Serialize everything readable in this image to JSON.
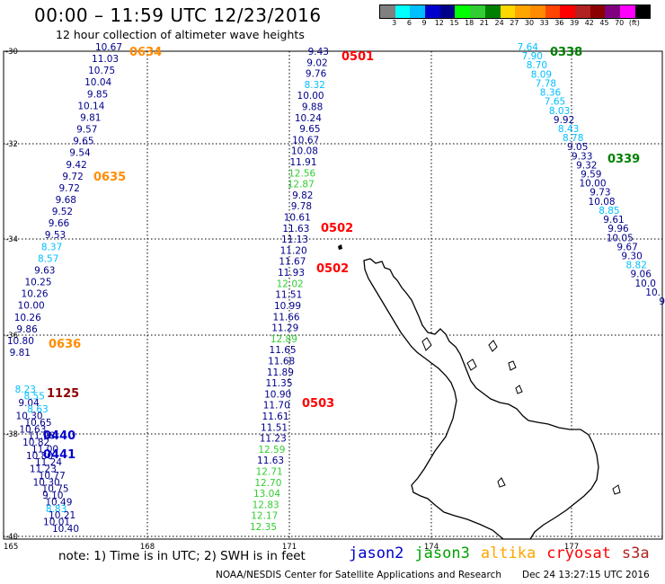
{
  "header": {
    "title": "00:00 – 11:59 UTC 12/23/2016",
    "subtitle": "12 hour collection of altimeter wave heights"
  },
  "colorbar": {
    "colors": [
      "#808080",
      "#00ffff",
      "#00bfff",
      "#0000cd",
      "#00008b",
      "#00ff00",
      "#32cd32",
      "#008000",
      "#ffd700",
      "#ffa500",
      "#ff8c00",
      "#ff4500",
      "#ff0000",
      "#b22222",
      "#8b0000",
      "#800080",
      "#ff00ff",
      "#000000"
    ],
    "labels": [
      "3",
      "6",
      "9",
      "12",
      "15",
      "18",
      "21",
      "24",
      "27",
      "30",
      "33",
      "36",
      "39",
      "42",
      "45",
      "70",
      "(ft)"
    ]
  },
  "axes": {
    "x_ticks": [
      "165",
      "168",
      "171",
      "174",
      "177"
    ],
    "y_ticks": [
      "-30",
      "-32",
      "-34",
      "-36",
      "-38",
      "-40"
    ]
  },
  "tracks": [
    {
      "points": [
        [
          "10.67",
          "#00008b"
        ],
        [
          "11.03",
          "#00008b"
        ],
        [
          "10.75",
          "#00008b"
        ],
        [
          "10.04",
          "#00008b"
        ],
        [
          "9.85",
          "#00008b"
        ],
        [
          "10.14",
          "#00008b"
        ],
        [
          "9.81",
          "#00008b"
        ],
        [
          "9.57",
          "#00008b"
        ],
        [
          "9.65",
          "#00008b"
        ],
        [
          "9.54",
          "#00008b"
        ],
        [
          "9.42",
          "#00008b"
        ],
        [
          "9.72",
          "#00008b"
        ],
        [
          "9.72",
          "#00008b"
        ],
        [
          "9.68",
          "#00008b"
        ],
        [
          "9.52",
          "#00008b"
        ],
        [
          "9.66",
          "#00008b"
        ],
        [
          "9.53",
          "#00008b"
        ],
        [
          "8.37",
          "#00bfff"
        ],
        [
          "8.57",
          "#00bfff"
        ],
        [
          "9.63",
          "#00008b"
        ],
        [
          "10.25",
          "#00008b"
        ],
        [
          "10.26",
          "#00008b"
        ],
        [
          "10.00",
          "#00008b"
        ],
        [
          "10.26",
          "#00008b"
        ],
        [
          "9.86",
          "#00008b"
        ],
        [
          "10.80",
          "#00008b"
        ],
        [
          "9.81",
          "#00008b"
        ]
      ]
    },
    {
      "points": [
        [
          "9.43",
          "#00008b"
        ],
        [
          "9.02",
          "#00008b"
        ],
        [
          "9.76",
          "#00008b"
        ],
        [
          "8.32",
          "#00bfff"
        ],
        [
          "10.00",
          "#00008b"
        ],
        [
          "9.88",
          "#00008b"
        ],
        [
          "10.24",
          "#00008b"
        ],
        [
          "9.65",
          "#00008b"
        ],
        [
          "10.67",
          "#00008b"
        ],
        [
          "10.08",
          "#00008b"
        ],
        [
          "11.91",
          "#00008b"
        ],
        [
          "12.56",
          "#32cd32"
        ],
        [
          "12.87",
          "#32cd32"
        ],
        [
          "9.82",
          "#00008b"
        ],
        [
          "9.78",
          "#00008b"
        ],
        [
          "10.61",
          "#00008b"
        ],
        [
          "11.63",
          "#00008b"
        ],
        [
          "11.13",
          "#00008b"
        ],
        [
          "11.20",
          "#00008b"
        ],
        [
          "11.67",
          "#00008b"
        ],
        [
          "11.93",
          "#00008b"
        ],
        [
          "12.02",
          "#32cd32"
        ],
        [
          "11.51",
          "#00008b"
        ],
        [
          "10.99",
          "#00008b"
        ],
        [
          "11.66",
          "#00008b"
        ],
        [
          "11.29",
          "#00008b"
        ],
        [
          "12.89",
          "#32cd32"
        ],
        [
          "11.65",
          "#00008b"
        ],
        [
          "11.68",
          "#00008b"
        ],
        [
          "11.89",
          "#00008b"
        ],
        [
          "11.35",
          "#00008b"
        ],
        [
          "10.90",
          "#00008b"
        ],
        [
          "11.70",
          "#00008b"
        ],
        [
          "11.61",
          "#00008b"
        ],
        [
          "11.51",
          "#00008b"
        ],
        [
          "11.23",
          "#00008b"
        ],
        [
          "12.59",
          "#32cd32"
        ],
        [
          "11.63",
          "#00008b"
        ],
        [
          "12.71",
          "#32cd32"
        ],
        [
          "12.70",
          "#32cd32"
        ],
        [
          "13.04",
          "#32cd32"
        ],
        [
          "12.83",
          "#32cd32"
        ],
        [
          "12.17",
          "#32cd32"
        ],
        [
          "12.35",
          "#32cd32"
        ]
      ]
    },
    {
      "points": [
        [
          "7.64",
          "#00bfff"
        ],
        [
          "7.90",
          "#00bfff"
        ],
        [
          "8.70",
          "#00bfff"
        ],
        [
          "8.09",
          "#00bfff"
        ],
        [
          "7.78",
          "#00bfff"
        ],
        [
          "8.36",
          "#00bfff"
        ],
        [
          "7.65",
          "#00bfff"
        ],
        [
          "8.03",
          "#00bfff"
        ],
        [
          "9.92",
          "#00008b"
        ],
        [
          "8.43",
          "#00bfff"
        ],
        [
          "8.78",
          "#00bfff"
        ],
        [
          "9.05",
          "#00008b"
        ],
        [
          "9.33",
          "#00008b"
        ],
        [
          "9.32",
          "#00008b"
        ],
        [
          "9.59",
          "#00008b"
        ],
        [
          "10.00",
          "#00008b"
        ],
        [
          "9.73",
          "#00008b"
        ],
        [
          "10.08",
          "#00008b"
        ],
        [
          "8.85",
          "#00bfff"
        ],
        [
          "9.61",
          "#00008b"
        ],
        [
          "9.96",
          "#00008b"
        ],
        [
          "10.05",
          "#00008b"
        ],
        [
          "9.67",
          "#00008b"
        ],
        [
          "9.30",
          "#00008b"
        ],
        [
          "8.82",
          "#00bfff"
        ],
        [
          "9.06",
          "#00008b"
        ],
        [
          "10.0",
          "#00008b"
        ],
        [
          "10.",
          "#00008b"
        ],
        [
          "9",
          "#00008b"
        ]
      ]
    },
    {
      "points": [
        [
          "8.23",
          "#00bfff"
        ],
        [
          "8.55",
          "#00bfff"
        ],
        [
          "9.04",
          "#00008b"
        ],
        [
          "8.63",
          "#00bfff"
        ],
        [
          "10.30",
          "#00008b"
        ],
        [
          "10.65",
          "#00008b"
        ],
        [
          "10.63",
          "#00008b"
        ],
        [
          "11.98",
          "#00008b"
        ],
        [
          "10.82",
          "#00008b"
        ],
        [
          "11.00",
          "#00008b"
        ],
        [
          "10.80",
          "#00008b"
        ],
        [
          "11.24",
          "#00008b"
        ],
        [
          "11.23",
          "#00008b"
        ],
        [
          "10.77",
          "#00008b"
        ],
        [
          "10.30",
          "#00008b"
        ],
        [
          "10.75",
          "#00008b"
        ],
        [
          "9.10",
          "#00008b"
        ],
        [
          "10.49",
          "#00008b"
        ],
        [
          "8.83",
          "#00bfff"
        ],
        [
          "10.21",
          "#00008b"
        ],
        [
          "10.01",
          "#00008b"
        ],
        [
          "10.40",
          "#00008b"
        ]
      ]
    }
  ],
  "time_labels": [
    {
      "text": "0634",
      "color": "#ff8c00"
    },
    {
      "text": "0635",
      "color": "#ff8c00"
    },
    {
      "text": "0636",
      "color": "#ff8c00"
    },
    {
      "text": "1125",
      "color": "#8b0000"
    },
    {
      "text": "0440",
      "color": "#0000cd"
    },
    {
      "text": "0441",
      "color": "#0000cd"
    },
    {
      "text": "0501",
      "color": "#ff0000"
    },
    {
      "text": "0502",
      "color": "#ff0000"
    },
    {
      "text": "0502",
      "color": "#ff0000"
    },
    {
      "text": "0503",
      "color": "#ff0000"
    },
    {
      "text": "0338",
      "color": "#008000"
    },
    {
      "text": "0339",
      "color": "#008000"
    }
  ],
  "footer": {
    "note": "note: 1) Time is in UTC; 2) SWH is in feet",
    "legend": [
      {
        "text": "jason2",
        "color": "#0000cd"
      },
      {
        "text": "jason3",
        "color": "#00a000"
      },
      {
        "text": "altika",
        "color": "#ffa500"
      },
      {
        "text": "cryosat",
        "color": "#ff0000"
      },
      {
        "text": "s3a",
        "color": "#b22222"
      }
    ],
    "credit": "NOAA/NESDIS Center for Satellite Applications and Research",
    "timestamp": "Dec 24 13:27:15 UTC 2016"
  }
}
